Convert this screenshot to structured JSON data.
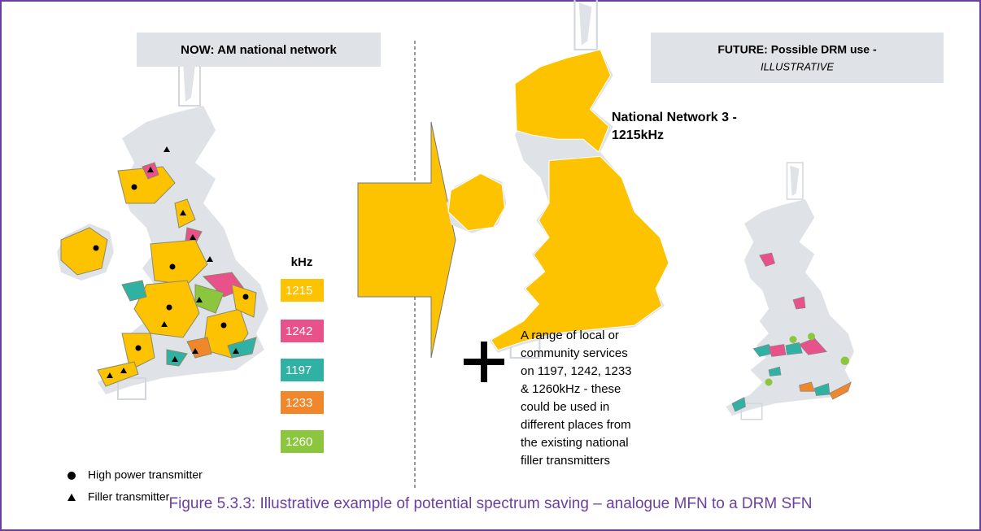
{
  "left_panel": {
    "heading": "NOW: AM national network",
    "legend": {
      "title": "kHz",
      "items": [
        {
          "label": "1215",
          "color": "#fdc300"
        },
        {
          "label": "1242",
          "color": "#e8518a"
        },
        {
          "label": "1197",
          "color": "#2fb2a4"
        },
        {
          "label": "1233",
          "color": "#f0872a"
        },
        {
          "label": "1260",
          "color": "#8cc63f"
        }
      ]
    },
    "markers": [
      "High power transmitter",
      "Filler transmitter"
    ]
  },
  "right_panel": {
    "heading": [
      "FUTURE: Possible DRM use -",
      "ILLUSTRATIVE"
    ],
    "map_label": [
      "National Network 3 -",
      "1215kHz"
    ]
  },
  "annotation": [
    "A range of local or",
    "community services",
    "on 1197, 1242, 1233",
    "& 1260kHz - these",
    "could be used in",
    "different places from",
    "the existing national",
    "filler transmitters"
  ],
  "caption": "Figure 5.3.3: Illustrative example of potential spectrum saving – analogue MFN to a DRM SFN"
}
